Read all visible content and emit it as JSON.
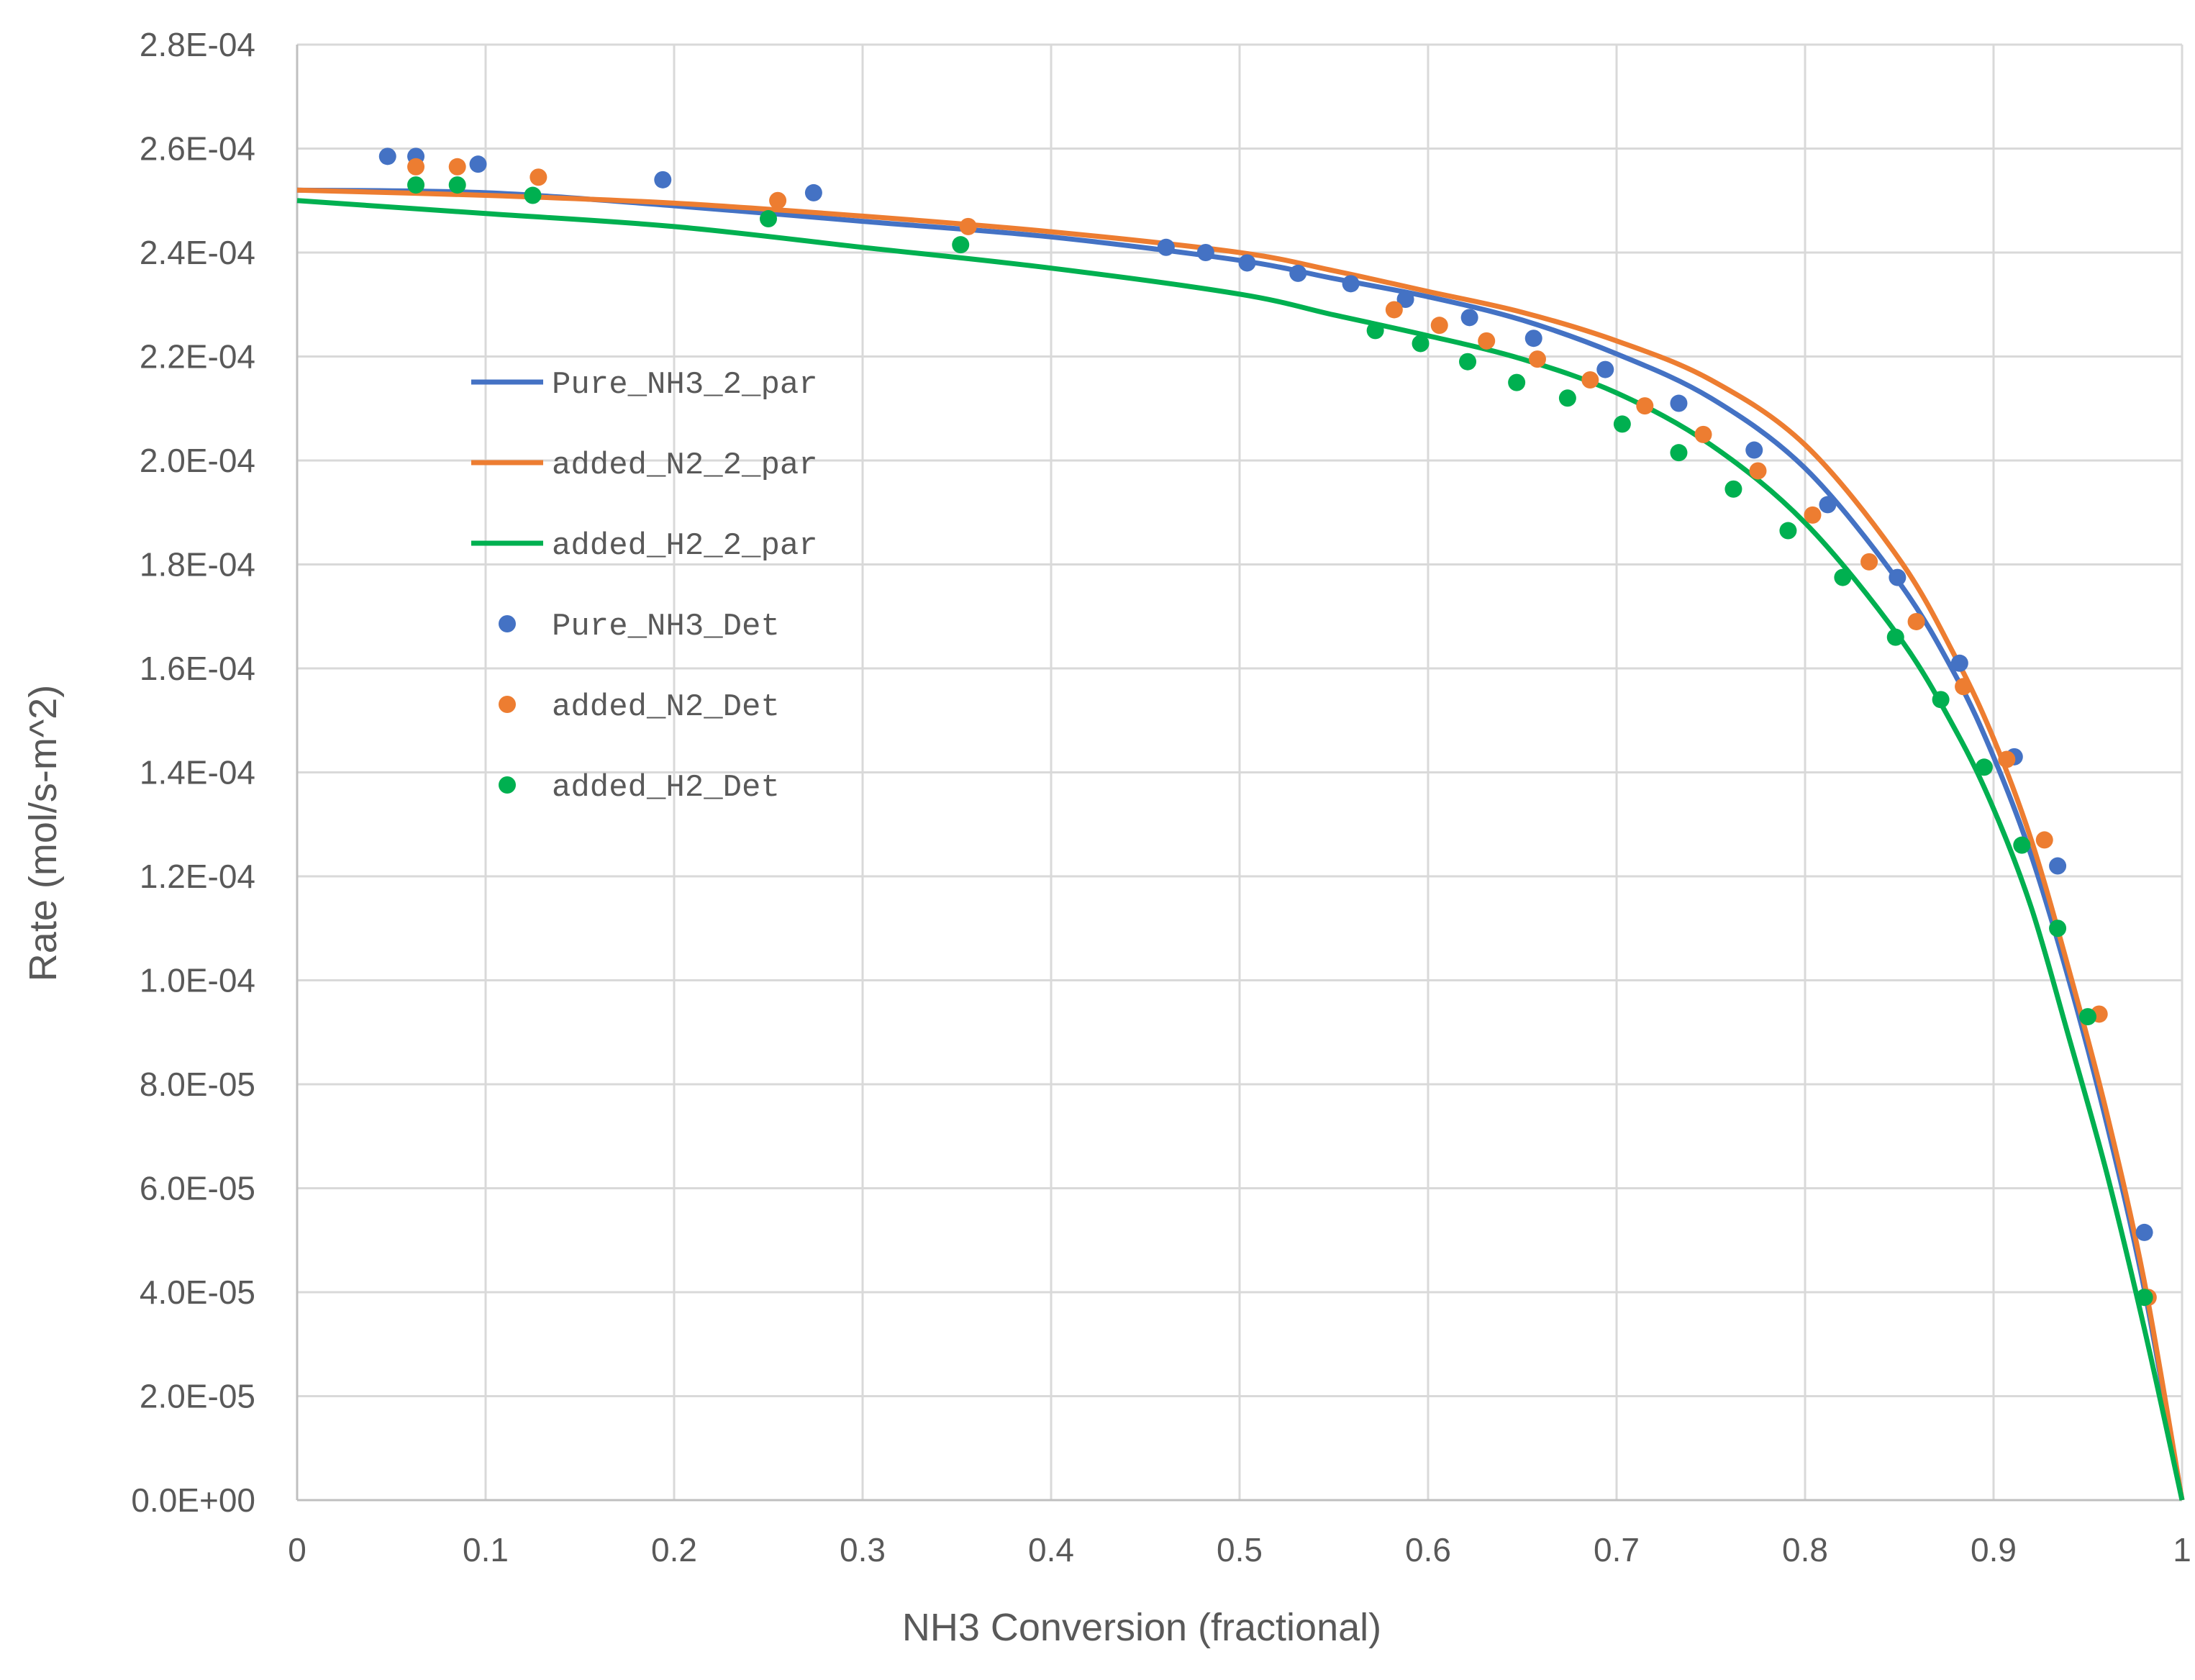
{
  "chart_data": {
    "type": "scatter",
    "title": "",
    "xlabel": "NH3 Conversion (fractional)",
    "ylabel": "Rate (mol/s-m^2)",
    "xlim": [
      0,
      1
    ],
    "ylim": [
      0,
      0.00028
    ],
    "grid": true,
    "legend_position": "left-middle inside plot",
    "x_ticks": [
      0,
      0.1,
      0.2,
      0.3,
      0.4,
      0.5,
      0.6,
      0.7,
      0.8,
      0.9,
      1
    ],
    "x_tick_labels": [
      "0",
      "0.1",
      "0.2",
      "0.3",
      "0.4",
      "0.5",
      "0.6",
      "0.7",
      "0.8",
      "0.9",
      "1"
    ],
    "y_ticks": [
      0,
      2e-05,
      4e-05,
      6e-05,
      8e-05,
      0.0001,
      0.00012,
      0.00014,
      0.00016,
      0.00018,
      0.0002,
      0.00022,
      0.00024,
      0.00026,
      0.00028
    ],
    "y_tick_labels": [
      "0.0E+00",
      "2.0E-05",
      "4.0E-05",
      "6.0E-05",
      "8.0E-05",
      "1.0E-04",
      "1.2E-04",
      "1.4E-04",
      "1.6E-04",
      "1.8E-04",
      "2.0E-04",
      "2.2E-04",
      "2.4E-04",
      "2.6E-04",
      "2.8E-04"
    ],
    "series": [
      {
        "name": "Pure_NH3_2_par",
        "kind": "line",
        "color": "#4472C4",
        "x": [
          0,
          0.1,
          0.2,
          0.3,
          0.4,
          0.5,
          0.55,
          0.6,
          0.65,
          0.7,
          0.75,
          0.8,
          0.85,
          0.88,
          0.9,
          0.92,
          0.94,
          0.96,
          0.98,
          1.0
        ],
        "y": [
          0.000252,
          0.0002515,
          0.000249,
          0.000246,
          0.000243,
          0.0002385,
          0.000235,
          0.0002315,
          0.000227,
          0.0002205,
          0.000212,
          0.0001985,
          0.0001765,
          0.0001585,
          0.000143,
          0.000124,
          0.0001,
          7.25e-05,
          4.05e-05,
          0.0
        ]
      },
      {
        "name": "added_N2_2_par",
        "kind": "line",
        "color": "#ED7D31",
        "x": [
          0,
          0.1,
          0.2,
          0.3,
          0.4,
          0.5,
          0.55,
          0.6,
          0.65,
          0.7,
          0.75,
          0.8,
          0.85,
          0.88,
          0.9,
          0.92,
          0.94,
          0.96,
          0.98,
          1.0
        ],
        "y": [
          0.000252,
          0.000251,
          0.0002495,
          0.000247,
          0.000244,
          0.00024,
          0.0002365,
          0.0002325,
          0.0002285,
          0.000223,
          0.0002155,
          0.000203,
          0.000181,
          0.000162,
          0.0001465,
          0.000127,
          0.000102,
          7.45e-05,
          4.2e-05,
          0.0
        ]
      },
      {
        "name": "added_H2_2_par",
        "kind": "line",
        "color": "#00B050",
        "x": [
          0,
          0.1,
          0.2,
          0.3,
          0.4,
          0.5,
          0.55,
          0.6,
          0.65,
          0.7,
          0.75,
          0.8,
          0.85,
          0.88,
          0.9,
          0.92,
          0.94,
          0.96,
          0.98,
          1.0
        ],
        "y": [
          0.00025,
          0.0002475,
          0.000245,
          0.000241,
          0.000237,
          0.000232,
          0.000228,
          0.000224,
          0.0002195,
          0.000213,
          0.000203,
          0.000188,
          0.000166,
          0.000148,
          0.000133,
          0.000114,
          8.9e-05,
          6.3e-05,
          3.3e-05,
          0.0
        ]
      },
      {
        "name": "Pure_NH3_Det",
        "kind": "scatter",
        "color": "#4472C4",
        "x": [
          0.048,
          0.063,
          0.096,
          0.194,
          0.274,
          0.461,
          0.482,
          0.504,
          0.531,
          0.559,
          0.588,
          0.622,
          0.656,
          0.694,
          0.733,
          0.773,
          0.812,
          0.849,
          0.882,
          0.911,
          0.934,
          0.98
        ],
        "y": [
          0.0002585,
          0.0002585,
          0.000257,
          0.000254,
          0.0002515,
          0.000241,
          0.00024,
          0.000238,
          0.000236,
          0.000234,
          0.000231,
          0.0002275,
          0.0002235,
          0.0002175,
          0.000211,
          0.000202,
          0.0001915,
          0.0001775,
          0.000161,
          0.000143,
          0.000122,
          5.15e-05
        ]
      },
      {
        "name": "added_N2_Det",
        "kind": "scatter",
        "color": "#ED7D31",
        "x": [
          0.063,
          0.085,
          0.128,
          0.255,
          0.356,
          0.582,
          0.606,
          0.631,
          0.658,
          0.686,
          0.715,
          0.746,
          0.775,
          0.804,
          0.834,
          0.859,
          0.884,
          0.907,
          0.927,
          0.956,
          0.982
        ],
        "y": [
          0.0002565,
          0.0002565,
          0.0002545,
          0.00025,
          0.000245,
          0.000229,
          0.000226,
          0.000223,
          0.0002195,
          0.0002155,
          0.0002105,
          0.000205,
          0.000198,
          0.0001895,
          0.0001805,
          0.000169,
          0.0001565,
          0.0001425,
          0.000127,
          9.35e-05,
          3.9e-05
        ]
      },
      {
        "name": "added_H2_Det",
        "kind": "scatter",
        "color": "#00B050",
        "x": [
          0.063,
          0.085,
          0.125,
          0.25,
          0.352,
          0.572,
          0.596,
          0.621,
          0.647,
          0.674,
          0.703,
          0.733,
          0.762,
          0.791,
          0.82,
          0.848,
          0.872,
          0.895,
          0.915,
          0.934,
          0.95,
          0.98
        ],
        "y": [
          0.000253,
          0.000253,
          0.000251,
          0.0002465,
          0.0002415,
          0.000225,
          0.0002225,
          0.000219,
          0.000215,
          0.000212,
          0.000207,
          0.0002015,
          0.0001945,
          0.0001865,
          0.0001775,
          0.000166,
          0.000154,
          0.000141,
          0.000126,
          0.00011,
          9.3e-05,
          3.9e-05
        ]
      }
    ]
  }
}
